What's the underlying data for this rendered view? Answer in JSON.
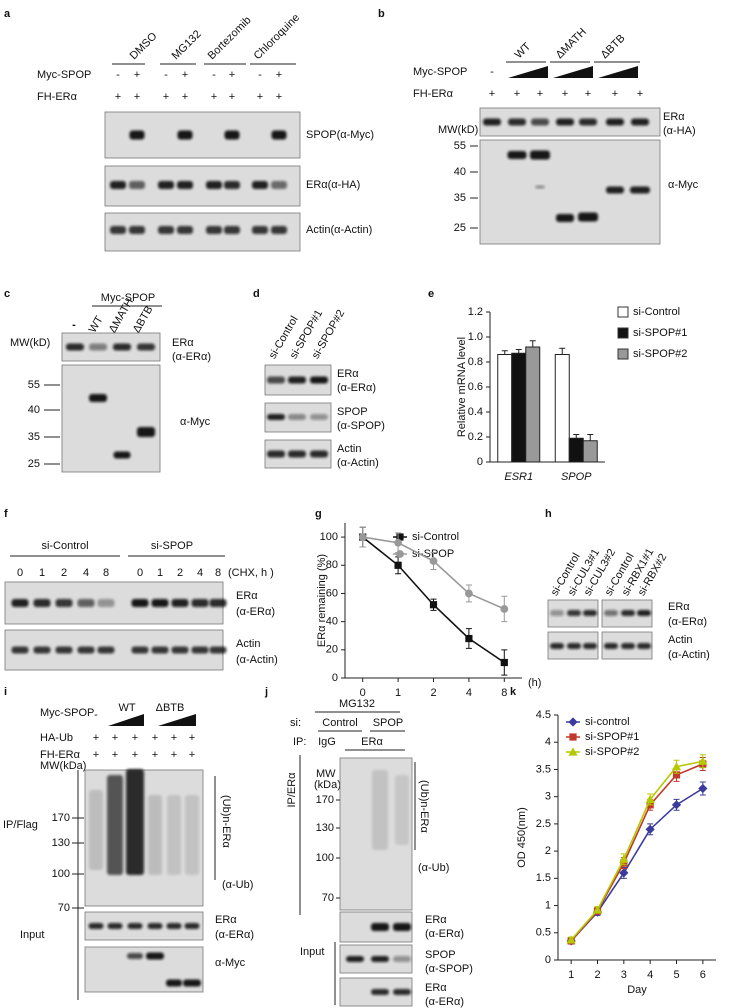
{
  "panels": {
    "a": {
      "label": "a",
      "treatments": [
        "DMSO",
        "MG132",
        "Bortezomib",
        "Chloroquine"
      ],
      "rows": [
        {
          "name": "Myc-SPOP",
          "signs": [
            "-",
            "+",
            "-",
            "+",
            "-",
            "+",
            "-",
            "+"
          ]
        },
        {
          "name": "FH-ERα",
          "signs": [
            "+",
            "+",
            "+",
            "+",
            "+",
            "+",
            "+",
            "+"
          ]
        }
      ],
      "blots": [
        "SPOP(α-Myc)",
        "ERα(α-HA)",
        "Actin(α-Actin)"
      ]
    },
    "b": {
      "label": "b",
      "constructs": [
        "WT",
        "ΔMATH",
        "ΔBTB"
      ],
      "rows": [
        {
          "name": "Myc-SPOP",
          "signs": [
            "-"
          ]
        },
        {
          "name": "FH-ERα",
          "signs": [
            "+",
            "+",
            "+",
            "+",
            "+",
            "+",
            "+"
          ]
        }
      ],
      "mw": "MW(kD)",
      "markers": [
        "55",
        "40",
        "35",
        "25"
      ],
      "blots": [
        [
          "ERα",
          "(α-HA)"
        ],
        [
          "α-Myc"
        ]
      ]
    },
    "c": {
      "label": "c",
      "group": "Myc-SPOP",
      "lanes": [
        "-",
        "WT",
        "ΔMATH",
        "ΔBTB"
      ],
      "mw": "MW(kD)",
      "markers": [
        "55",
        "40",
        "35",
        "25"
      ],
      "blots": [
        [
          "ERα",
          "(α-ERα)"
        ],
        [
          "α-Myc"
        ]
      ]
    },
    "d": {
      "label": "d",
      "lanes": [
        "si-Control",
        "si-SPOP#1",
        "si-SPOP#2"
      ],
      "blots": [
        [
          "ERα",
          "(α-ERα)"
        ],
        [
          "SPOP",
          "(α-SPOP)"
        ],
        [
          "Actin",
          "(α-Actin)"
        ]
      ]
    },
    "f": {
      "label": "f",
      "groups": [
        "si-Control",
        "si-SPOP"
      ],
      "times": [
        "0",
        "1",
        "2",
        "4",
        "8",
        "0",
        "1",
        "2",
        "4",
        "8"
      ],
      "time_unit": "(CHX, h )",
      "blots": [
        [
          "ERα",
          "(α-ERα)"
        ],
        [
          "Actin",
          "(α-Actin)"
        ]
      ]
    },
    "h": {
      "label": "h",
      "lanes": [
        "si-Control",
        "si-CUL3#1",
        "si-CUL3#2",
        "si-Control",
        "si-RBX1#1",
        "si-RBX#2"
      ],
      "blots": [
        [
          "ERα",
          "(α-ERα)"
        ],
        [
          "Actin",
          "(α-Actin)"
        ]
      ]
    },
    "i": {
      "label": "i",
      "rows": [
        {
          "name": "Myc-SPOP",
          "signs": [
            "-"
          ]
        },
        {
          "name": "HA-Ub",
          "signs": [
            "+",
            "+",
            "+",
            "+",
            "+",
            "+"
          ]
        },
        {
          "name": "FH-ERα",
          "signs": [
            "+",
            "+",
            "+",
            "+",
            "+",
            "+"
          ]
        }
      ],
      "constructs": [
        "WT",
        "ΔBTB"
      ],
      "mw": "MW(kDa)",
      "markers": [
        "170",
        "130",
        "100",
        "70"
      ],
      "ip": "IP/Flag",
      "input": "Input",
      "ub": [
        "(Ub)n-ERα",
        "(α-Ub)"
      ],
      "blots": [
        [
          "ERα",
          "(α-ERα)"
        ],
        [
          "α-Myc"
        ]
      ]
    },
    "j": {
      "label": "j",
      "treatment": "MG132",
      "si": "si:",
      "si_groups": [
        "Control",
        "SPOP"
      ],
      "ip_row": "IP:",
      "ip_lanes": [
        "IgG",
        "ERα"
      ],
      "ip": "IP/ERα",
      "mw": [
        "MW",
        "(kDa)"
      ],
      "markers": [
        "170",
        "130",
        "100",
        "70"
      ],
      "ub": [
        "(Ub)n-ERα",
        "(α-Ub)"
      ],
      "input": "Input",
      "blots": [
        [
          "ERα",
          "(α-ERα)"
        ],
        [
          "SPOP",
          "(α-SPOP)"
        ],
        [
          "ERα",
          "(α-ERα)"
        ]
      ]
    }
  },
  "chart_data": [
    {
      "type": "bar",
      "panel": "e",
      "ylabel": "Relative mRNA level",
      "categories": [
        "ESR1",
        "SPOP"
      ],
      "series": [
        {
          "name": "si-Control",
          "color": "#ffffff",
          "values": [
            0.86,
            0.86
          ],
          "errors": [
            0.03,
            0.05
          ]
        },
        {
          "name": "si-SPOP#1",
          "color": "#111111",
          "values": [
            0.87,
            0.19
          ],
          "errors": [
            0.03,
            0.03
          ]
        },
        {
          "name": "si-SPOP#2",
          "color": "#999999",
          "values": [
            0.92,
            0.17
          ],
          "errors": [
            0.05,
            0.05
          ]
        }
      ],
      "ylim": [
        0,
        1.2
      ],
      "yticks": [
        0,
        0.2,
        0.4,
        0.6,
        0.8,
        {
          "value": 1,
          "label": "1.0"
        },
        1.2
      ]
    },
    {
      "type": "line",
      "panel": "g",
      "ylabel": "ERα remaining (%)",
      "xlabel": "(h)",
      "categories": [
        "0",
        "1",
        "2",
        "4",
        "8"
      ],
      "series": [
        {
          "name": "si-Control",
          "color": "#111111",
          "marker": "square",
          "values": [
            100,
            80,
            52,
            28,
            11
          ],
          "errors": [
            7,
            6,
            4,
            7,
            9
          ]
        },
        {
          "name": "si-SPOP",
          "color": "#999999",
          "marker": "circle",
          "values": [
            100,
            96,
            83,
            60,
            49
          ],
          "errors": [
            7,
            7,
            6,
            6,
            9
          ]
        }
      ],
      "ylim": [
        0,
        110
      ],
      "yticks": [
        0,
        20,
        40,
        60,
        80,
        100
      ]
    },
    {
      "type": "line",
      "panel": "k",
      "ylabel": "OD 450(nm)",
      "xlabel": "Day",
      "x": [
        1,
        2,
        3,
        4,
        5,
        6
      ],
      "series": [
        {
          "name": "si-control",
          "color": "#3b3b9e",
          "marker": "diamond",
          "values": [
            0.35,
            0.88,
            1.6,
            2.4,
            2.85,
            3.15
          ],
          "errors": [
            0.05,
            0.06,
            0.1,
            0.1,
            0.1,
            0.12
          ]
        },
        {
          "name": "si-SPOP#1",
          "color": "#c0392b",
          "marker": "square",
          "values": [
            0.35,
            0.9,
            1.78,
            2.85,
            3.4,
            3.6
          ],
          "errors": [
            0.05,
            0.06,
            0.1,
            0.1,
            0.12,
            0.12
          ]
        },
        {
          "name": "si-SPOP#2",
          "color": "#b5c800",
          "marker": "triangle",
          "values": [
            0.37,
            0.92,
            1.85,
            2.95,
            3.55,
            3.65
          ],
          "errors": [
            0.05,
            0.06,
            0.1,
            0.1,
            0.12,
            0.12
          ]
        }
      ],
      "xlim": [
        0.5,
        6.5
      ],
      "xticks": [
        1,
        2,
        3,
        4,
        5,
        6
      ],
      "ylim": [
        0,
        4.5
      ],
      "yticks": [
        0,
        0.5,
        1,
        1.5,
        2,
        2.5,
        3,
        3.5,
        4,
        4.5
      ]
    }
  ]
}
